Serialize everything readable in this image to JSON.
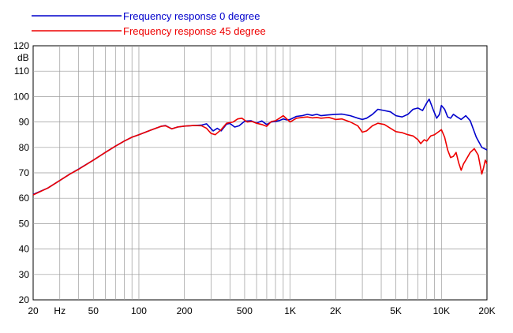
{
  "chart_data": {
    "type": "line",
    "title": "",
    "xlabel": "Hz",
    "ylabel": "dB",
    "x_scale": "log",
    "xlim": [
      20,
      20000
    ],
    "ylim": [
      20,
      120
    ],
    "grid": true,
    "legend_position": "top-left",
    "x_ticks": [
      {
        "value": 20,
        "label": "20"
      },
      {
        "value": 50,
        "label": "50"
      },
      {
        "value": 100,
        "label": "100"
      },
      {
        "value": 200,
        "label": "200"
      },
      {
        "value": 500,
        "label": "500"
      },
      {
        "value": 1000,
        "label": "1K"
      },
      {
        "value": 2000,
        "label": "2K"
      },
      {
        "value": 5000,
        "label": "5K"
      },
      {
        "value": 10000,
        "label": "10K"
      },
      {
        "value": 20000,
        "label": "20K"
      }
    ],
    "y_ticks": [
      20,
      30,
      40,
      50,
      60,
      70,
      80,
      90,
      100,
      110,
      120
    ],
    "series": [
      {
        "name": "Frequency response 0 degree",
        "color": "#0000cc",
        "points": [
          [
            20,
            61.5
          ],
          [
            25,
            64
          ],
          [
            30,
            67
          ],
          [
            35,
            69.5
          ],
          [
            40,
            71.5
          ],
          [
            50,
            75
          ],
          [
            60,
            78
          ],
          [
            70,
            80.5
          ],
          [
            80,
            82.5
          ],
          [
            90,
            84
          ],
          [
            100,
            85
          ],
          [
            120,
            86.8
          ],
          [
            140,
            88.3
          ],
          [
            150,
            88.6
          ],
          [
            165,
            87.3
          ],
          [
            180,
            88
          ],
          [
            200,
            88.4
          ],
          [
            230,
            88.6
          ],
          [
            260,
            88.8
          ],
          [
            280,
            89.3
          ],
          [
            310,
            86.5
          ],
          [
            330,
            87.5
          ],
          [
            350,
            86.5
          ],
          [
            380,
            89.2
          ],
          [
            400,
            89.4
          ],
          [
            430,
            88
          ],
          [
            460,
            88.5
          ],
          [
            500,
            90.3
          ],
          [
            550,
            90.5
          ],
          [
            600,
            89.6
          ],
          [
            650,
            90.4
          ],
          [
            700,
            89
          ],
          [
            750,
            90
          ],
          [
            800,
            90.2
          ],
          [
            850,
            90.6
          ],
          [
            900,
            91.2
          ],
          [
            950,
            90.8
          ],
          [
            1000,
            91
          ],
          [
            1100,
            92.2
          ],
          [
            1200,
            92.5
          ],
          [
            1300,
            93
          ],
          [
            1400,
            92.6
          ],
          [
            1500,
            93
          ],
          [
            1600,
            92.5
          ],
          [
            1800,
            92.8
          ],
          [
            2000,
            93
          ],
          [
            2200,
            93.1
          ],
          [
            2500,
            92.5
          ],
          [
            2800,
            91.5
          ],
          [
            3000,
            91
          ],
          [
            3200,
            91.5
          ],
          [
            3500,
            93
          ],
          [
            3800,
            95
          ],
          [
            4200,
            94.5
          ],
          [
            4600,
            94
          ],
          [
            5000,
            92.5
          ],
          [
            5500,
            92
          ],
          [
            6000,
            93
          ],
          [
            6500,
            95
          ],
          [
            7000,
            95.5
          ],
          [
            7500,
            94.5
          ],
          [
            8000,
            97.5
          ],
          [
            8300,
            99
          ],
          [
            8800,
            95
          ],
          [
            9300,
            91.5
          ],
          [
            9700,
            93
          ],
          [
            10000,
            96.5
          ],
          [
            10500,
            95
          ],
          [
            11000,
            92
          ],
          [
            11500,
            91.5
          ],
          [
            12000,
            93
          ],
          [
            12700,
            92
          ],
          [
            13500,
            91
          ],
          [
            14500,
            92.5
          ],
          [
            15500,
            90.5
          ],
          [
            17000,
            84
          ],
          [
            18500,
            80
          ],
          [
            20000,
            79
          ]
        ]
      },
      {
        "name": "Frequency response 45 degree",
        "color": "#ee0000",
        "points": [
          [
            20,
            61.3
          ],
          [
            25,
            64
          ],
          [
            30,
            67
          ],
          [
            35,
            69.5
          ],
          [
            40,
            71.4
          ],
          [
            50,
            75
          ],
          [
            60,
            78
          ],
          [
            70,
            80.5
          ],
          [
            80,
            82.5
          ],
          [
            90,
            84
          ],
          [
            100,
            85
          ],
          [
            120,
            86.8
          ],
          [
            140,
            88.3
          ],
          [
            150,
            88.5
          ],
          [
            165,
            87.3
          ],
          [
            180,
            88
          ],
          [
            200,
            88.4
          ],
          [
            230,
            88.6
          ],
          [
            260,
            88.5
          ],
          [
            280,
            87.5
          ],
          [
            300,
            85.5
          ],
          [
            320,
            85
          ],
          [
            350,
            87
          ],
          [
            380,
            89.5
          ],
          [
            420,
            90
          ],
          [
            450,
            91.2
          ],
          [
            480,
            91.5
          ],
          [
            520,
            90
          ],
          [
            560,
            90.2
          ],
          [
            600,
            89.5
          ],
          [
            650,
            89
          ],
          [
            700,
            88.3
          ],
          [
            750,
            90.2
          ],
          [
            800,
            90.5
          ],
          [
            850,
            91.5
          ],
          [
            900,
            92.5
          ],
          [
            1000,
            90
          ],
          [
            1100,
            91.5
          ],
          [
            1200,
            91.8
          ],
          [
            1300,
            92
          ],
          [
            1400,
            91.6
          ],
          [
            1500,
            91.8
          ],
          [
            1600,
            91.5
          ],
          [
            1800,
            91.8
          ],
          [
            2000,
            91
          ],
          [
            2200,
            91.2
          ],
          [
            2500,
            90
          ],
          [
            2800,
            88.5
          ],
          [
            3000,
            86
          ],
          [
            3200,
            86.5
          ],
          [
            3500,
            88.5
          ],
          [
            3800,
            89.5
          ],
          [
            4200,
            89
          ],
          [
            4600,
            87.5
          ],
          [
            5000,
            86.2
          ],
          [
            5500,
            85.8
          ],
          [
            6000,
            85
          ],
          [
            6500,
            84.5
          ],
          [
            7000,
            83
          ],
          [
            7300,
            81.5
          ],
          [
            7700,
            83
          ],
          [
            8000,
            82.5
          ],
          [
            8500,
            84.5
          ],
          [
            9000,
            85
          ],
          [
            9500,
            86
          ],
          [
            10000,
            87
          ],
          [
            10500,
            84
          ],
          [
            11000,
            79
          ],
          [
            11500,
            76
          ],
          [
            12000,
            76.5
          ],
          [
            12500,
            78
          ],
          [
            13000,
            74
          ],
          [
            13500,
            71
          ],
          [
            14000,
            73.5
          ],
          [
            14500,
            75
          ],
          [
            15500,
            78
          ],
          [
            16500,
            79.5
          ],
          [
            17500,
            77
          ],
          [
            18500,
            69.5
          ],
          [
            19000,
            72
          ],
          [
            19500,
            75
          ],
          [
            20000,
            73.5
          ]
        ]
      }
    ]
  }
}
